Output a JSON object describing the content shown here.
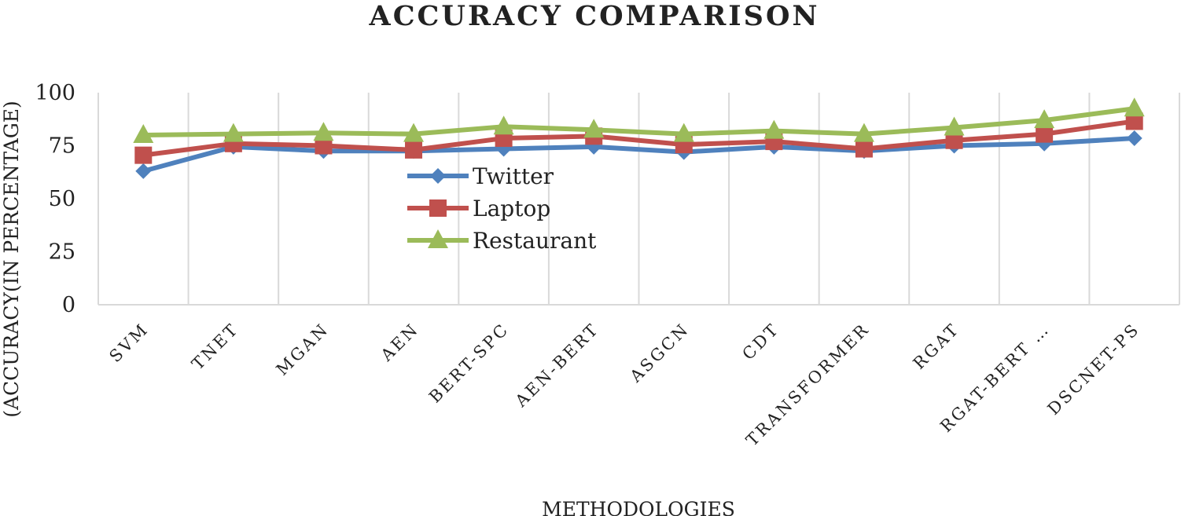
{
  "chart_data": {
    "type": "line",
    "title": "ACCURACY COMPARISON",
    "xlabel": "METHODOLOGIES",
    "ylabel": "(ACCURACY(IN PERCENTAGE)",
    "ylim": [
      0,
      100
    ],
    "yticks": [
      0,
      25,
      50,
      75,
      100
    ],
    "grid": "vertical",
    "legend": "center-left",
    "categories": [
      "SVM",
      "TNET",
      "MGAN",
      "AEN",
      "BERT-SPC",
      "AEN-BERT",
      "ASGCN",
      "CDT",
      "TRANSFORMER",
      "RGAT",
      "RGAT-BERT …",
      "DSCNET-PS"
    ],
    "series": [
      {
        "name": "Twitter",
        "color": "#4f81bd",
        "marker": "diamond",
        "values": [
          63,
          74.5,
          72.5,
          72.5,
          73.5,
          74.5,
          72,
          74.5,
          72.5,
          75,
          76,
          78.5
        ]
      },
      {
        "name": "Laptop",
        "color": "#c0504d",
        "marker": "square",
        "values": [
          70.5,
          76,
          75,
          73,
          78.5,
          79.5,
          75.5,
          77,
          73.5,
          77.5,
          80.5,
          86.5
        ]
      },
      {
        "name": "Restaurant",
        "color": "#9bbb59",
        "marker": "triangle",
        "values": [
          80,
          80.5,
          81,
          80.5,
          84,
          82.5,
          80.5,
          82,
          80.5,
          83.5,
          87,
          92.5
        ]
      }
    ]
  }
}
